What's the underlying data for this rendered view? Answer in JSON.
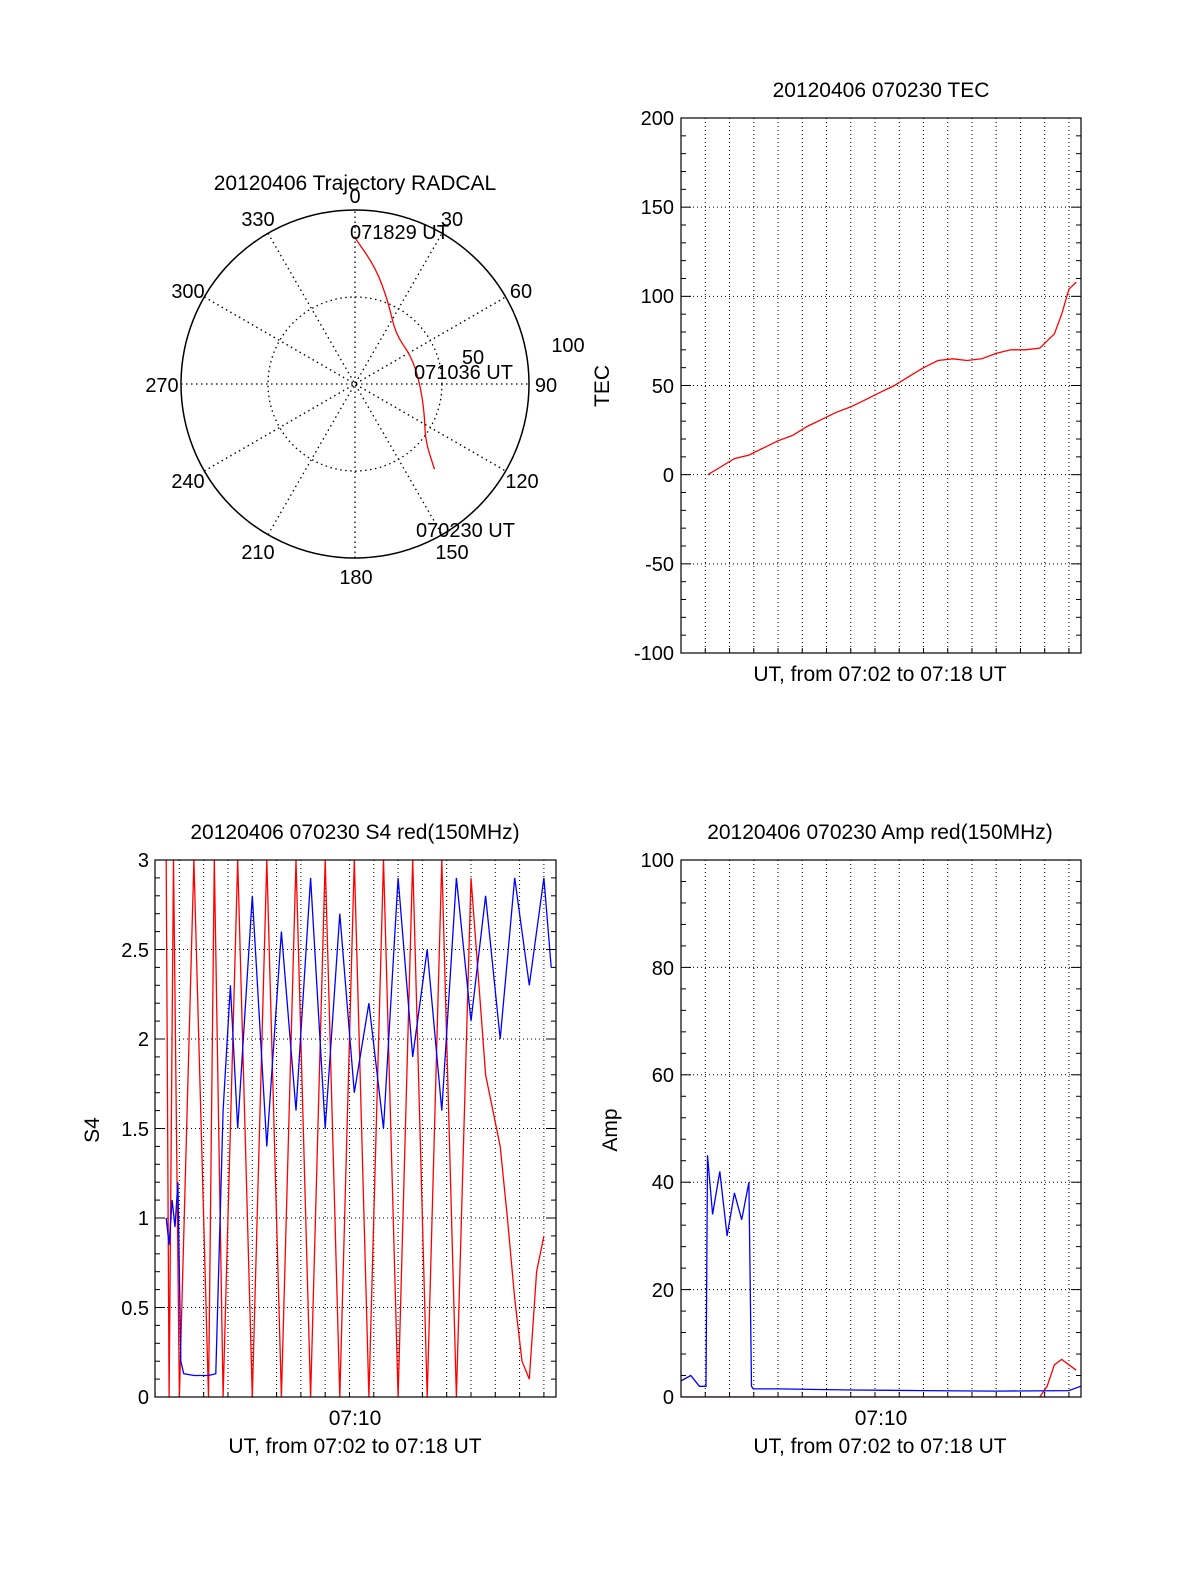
{
  "colors": {
    "red": "#ff0000",
    "blue": "#0000ff",
    "axis": "#000000",
    "grid": "#000000"
  },
  "chart_data": [
    {
      "type": "polar",
      "title": "20120406 Trajectory RADCAL",
      "angle_labels": [
        "0",
        "30",
        "60",
        "90",
        "120",
        "150",
        "180",
        "210",
        "240",
        "270",
        "300",
        "330"
      ],
      "radial_labels": [
        "50",
        "100"
      ],
      "r_max": 100,
      "grid": true,
      "trajectory": {
        "color": "red",
        "points": [
          [
            0,
            84
          ],
          [
            10,
            68
          ],
          [
            22,
            51
          ],
          [
            39,
            37
          ],
          [
            63,
            36
          ],
          [
            87,
            37
          ],
          [
            112,
            43
          ],
          [
            129,
            52
          ],
          [
            137,
            67
          ]
        ]
      },
      "annotations": [
        {
          "text": "071829 UT",
          "angle": 3,
          "r": 93
        },
        {
          "text": "071036 UT",
          "angle": 80,
          "r": 43
        },
        {
          "text": "070230 UT",
          "angle": 129,
          "r": 92
        }
      ]
    },
    {
      "type": "line",
      "title": "20120406 070230 TEC",
      "xlabel": "UT, from 07:02 to 07:18 UT",
      "ylabel": "TEC",
      "xlim": [
        7.0333,
        7.3083
      ],
      "ylim": [
        -100,
        200
      ],
      "yticks": [
        "-100",
        "-50",
        "0",
        "50",
        "100",
        "150",
        "200"
      ],
      "xticklabels": [],
      "grid": true,
      "series": [
        {
          "color": "red",
          "x": [
            7.0517,
            7.06,
            7.07,
            7.08,
            7.09,
            7.1,
            7.11,
            7.12,
            7.13,
            7.14,
            7.15,
            7.16,
            7.17,
            7.18,
            7.19,
            7.2,
            7.21,
            7.22,
            7.23,
            7.24,
            7.25,
            7.26,
            7.27,
            7.28,
            7.29,
            7.295,
            7.3,
            7.305
          ],
          "y": [
            0,
            4,
            9,
            11,
            15,
            19,
            22,
            27,
            31,
            35,
            38,
            42,
            46,
            50,
            55,
            60,
            64,
            65,
            64,
            65,
            68,
            70,
            70,
            71,
            79,
            90,
            104,
            108
          ]
        }
      ]
    },
    {
      "type": "line",
      "title": "20120406 070230 S4 red(150MHz)",
      "xlabel": "UT, from 07:02 to 07:18 UT",
      "ylabel": "S4",
      "xlim": [
        7.0333,
        7.3083
      ],
      "ylim": [
        0,
        3
      ],
      "yticks": [
        "0",
        "0.5",
        "1",
        "1.5",
        "2",
        "2.5",
        "3"
      ],
      "xticks": [
        {
          "x": 7.1667,
          "label": "07:10"
        }
      ],
      "grid": true,
      "series": [
        {
          "color": "red",
          "x": [
            7.041,
            7.043,
            7.046,
            7.05,
            7.06,
            7.07,
            7.074,
            7.08,
            7.09,
            7.1,
            7.11,
            7.12,
            7.13,
            7.14,
            7.15,
            7.16,
            7.17,
            7.18,
            7.19,
            7.2,
            7.21,
            7.22,
            7.23,
            7.24,
            7.25,
            7.26,
            7.27,
            7.275,
            7.28,
            7.285,
            7.29,
            7.295,
            7.3
          ],
          "y": [
            3,
            0,
            3,
            0,
            3,
            0,
            3,
            0,
            3,
            0,
            3,
            0,
            3,
            0,
            3,
            0,
            3,
            0,
            3,
            0,
            3,
            0,
            3,
            0,
            2.9,
            1.8,
            1.4,
            1.0,
            0.55,
            0.2,
            0.1,
            0.7,
            0.9
          ]
        },
        {
          "color": "blue",
          "x": [
            7.041,
            7.043,
            7.045,
            7.047,
            7.049,
            7.051,
            7.053,
            7.06,
            7.07,
            7.075,
            7.08,
            7.085,
            7.09,
            7.1,
            7.11,
            7.12,
            7.13,
            7.14,
            7.15,
            7.16,
            7.17,
            7.18,
            7.19,
            7.2,
            7.21,
            7.22,
            7.23,
            7.24,
            7.25,
            7.26,
            7.27,
            7.28,
            7.29,
            7.3,
            7.305
          ],
          "y": [
            1.0,
            0.85,
            1.1,
            0.95,
            1.2,
            0.2,
            0.13,
            0.12,
            0.12,
            0.13,
            1.6,
            2.3,
            1.5,
            2.8,
            1.4,
            2.6,
            1.6,
            2.9,
            1.5,
            2.7,
            1.7,
            2.2,
            1.5,
            2.9,
            1.9,
            2.5,
            1.6,
            2.9,
            2.1,
            2.8,
            2.0,
            2.9,
            2.3,
            2.9,
            2.4
          ]
        }
      ]
    },
    {
      "type": "line",
      "title": "20120406 070230 Amp red(150MHz)",
      "xlabel": "UT, from 07:02 to 07:18 UT",
      "ylabel": "Amp",
      "xlim": [
        7.0333,
        7.3083
      ],
      "ylim": [
        0,
        100
      ],
      "yticks": [
        "0",
        "20",
        "40",
        "60",
        "80",
        "100"
      ],
      "xticks": [
        {
          "x": 7.1667,
          "label": "07:10"
        }
      ],
      "grid": true,
      "series": [
        {
          "color": "red",
          "x": [
            7.0333,
            7.06,
            7.08,
            7.28,
            7.285,
            7.29,
            7.295,
            7.3,
            7.305
          ],
          "y": [
            0,
            0,
            0,
            0,
            2,
            6,
            7,
            6,
            5
          ]
        },
        {
          "color": "blue",
          "x": [
            7.0333,
            7.04,
            7.046,
            7.0505,
            7.0515,
            7.055,
            7.06,
            7.065,
            7.07,
            7.075,
            7.08,
            7.0818,
            7.083,
            7.1,
            7.15,
            7.2,
            7.25,
            7.3,
            7.308
          ],
          "y": [
            3,
            4,
            2,
            2,
            45,
            34,
            42,
            30,
            38,
            33,
            40,
            2,
            1.5,
            1.5,
            1.3,
            1.2,
            1.1,
            1.2,
            2
          ]
        }
      ]
    }
  ]
}
